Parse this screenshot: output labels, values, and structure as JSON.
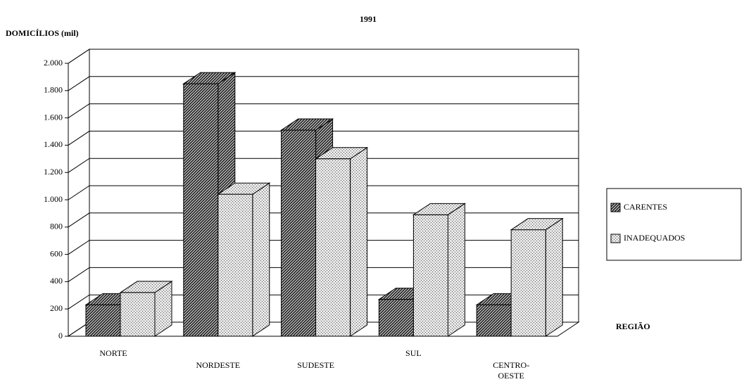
{
  "chart_data": {
    "type": "bar3d",
    "title": "1991",
    "ylabel": "DOMICÍLIOS (mil)",
    "xlabel": "REGIÃO",
    "categories": [
      "NORTE",
      "NORDESTE",
      "SUDESTE",
      "SUL",
      "CENTRO-OESTE"
    ],
    "series": [
      {
        "name": "CARENTES",
        "color": "#2a2a2a",
        "values": [
          230,
          1850,
          1510,
          270,
          230
        ]
      },
      {
        "name": "INADEQUADOS",
        "color": "#e6e6e6",
        "values": [
          320,
          1040,
          1300,
          890,
          780
        ]
      }
    ],
    "ylim": [
      0,
      2000
    ],
    "yticks": [
      0,
      200,
      400,
      600,
      800,
      {
        "value": 1000,
        "label": "1.000"
      },
      {
        "value": 1200,
        "label": "1.200"
      },
      {
        "value": 1400,
        "label": "1.400"
      },
      {
        "value": 1600,
        "label": "1.600"
      },
      {
        "value": 1800,
        "label": "1.800"
      },
      {
        "value": 2000,
        "label": "2.000"
      }
    ],
    "grid": true,
    "legend": "right"
  }
}
